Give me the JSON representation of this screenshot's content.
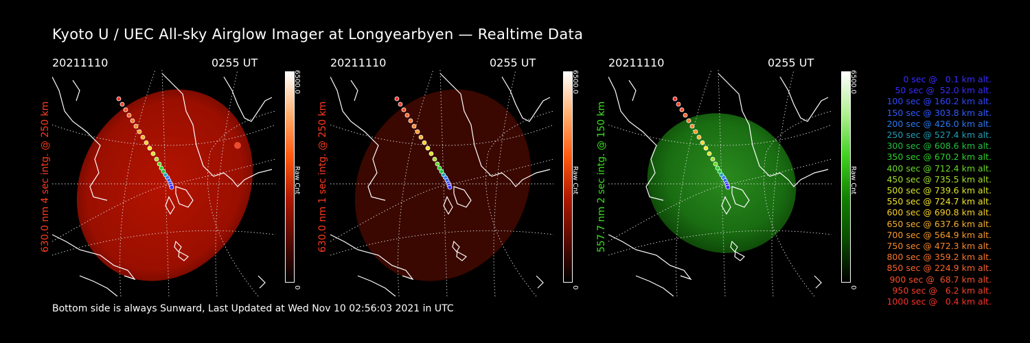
{
  "title": "Kyoto U / UEC All-sky Airglow Imager at Longyearbyen — Realtime Data",
  "panels": [
    {
      "date": "20211110",
      "time": "0255 UT",
      "side_label": "630.0 nm 4 sec intg. @ 250 km",
      "scale_max": "6500.0",
      "scale_min": "0",
      "scale_label": "Raw Cnt",
      "side_color": "#ff3b1f",
      "cbar_color": "#b01800",
      "glow_color": "#a80f00"
    },
    {
      "date": "20211110",
      "time": "0255 UT",
      "side_label": "630.0 nm 1 sec intg. @ 250 km",
      "scale_max": "6500.0",
      "scale_min": "0",
      "scale_label": "Raw Cnt",
      "side_color": "#ff3b1f",
      "cbar_color": "#b01800",
      "glow_color": "#3a0800"
    },
    {
      "date": "20211110",
      "time": "0255 UT",
      "side_label": "557.7 nm 2 sec intg. @ 150 km",
      "scale_max": "6500.0",
      "scale_min": "0",
      "scale_label": "Raw Cnt",
      "side_color": "#3ce020",
      "cbar_color": "#108000",
      "glow_color": "#176a10"
    }
  ],
  "footer": "Bottom side is always Sunward, Last Updated at Wed Nov 10 02:56:03 2021 in UTC",
  "legend": [
    {
      "text": "0 sec @   0.1 km alt.",
      "color": "#3a2cff"
    },
    {
      "text": "50 sec @  52.0 km alt.",
      "color": "#3a2cff"
    },
    {
      "text": "100 sec @ 160.2 km alt.",
      "color": "#2f48ff"
    },
    {
      "text": "150 sec @ 303.8 km alt.",
      "color": "#2f5cff"
    },
    {
      "text": "200 sec @ 426.0 km alt.",
      "color": "#2a78f0"
    },
    {
      "text": "250 sec @ 527.4 km alt.",
      "color": "#1fa0b8"
    },
    {
      "text": "300 sec @ 608.6 km alt.",
      "color": "#22c040"
    },
    {
      "text": "350 sec @ 670.2 km alt.",
      "color": "#2ed02a"
    },
    {
      "text": "400 sec @ 712.4 km alt.",
      "color": "#6ad828"
    },
    {
      "text": "450 sec @ 735.5 km alt.",
      "color": "#a6e02a"
    },
    {
      "text": "500 sec @ 739.6 km alt.",
      "color": "#d8e628"
    },
    {
      "text": "550 sec @ 724.7 km alt.",
      "color": "#f2e62a"
    },
    {
      "text": "600 sec @ 690.8 km alt.",
      "color": "#f8d02a"
    },
    {
      "text": "650 sec @ 637.6 km alt.",
      "color": "#f8b02a"
    },
    {
      "text": "700 sec @ 564.9 km alt.",
      "color": "#f89a2a"
    },
    {
      "text": "750 sec @ 472.3 km alt.",
      "color": "#f8862a"
    },
    {
      "text": "800 sec @ 359.2 km alt.",
      "color": "#f8762a"
    },
    {
      "text": "850 sec @ 224.9 km alt.",
      "color": "#f8622a"
    },
    {
      "text": "900 sec @  68.7 km alt.",
      "color": "#f8502a"
    },
    {
      "text": "950 sec @   6.2 km alt.",
      "color": "#f8402a"
    },
    {
      "text": "1000 sec @   0.4 km alt.",
      "color": "#f8302a"
    }
  ]
}
